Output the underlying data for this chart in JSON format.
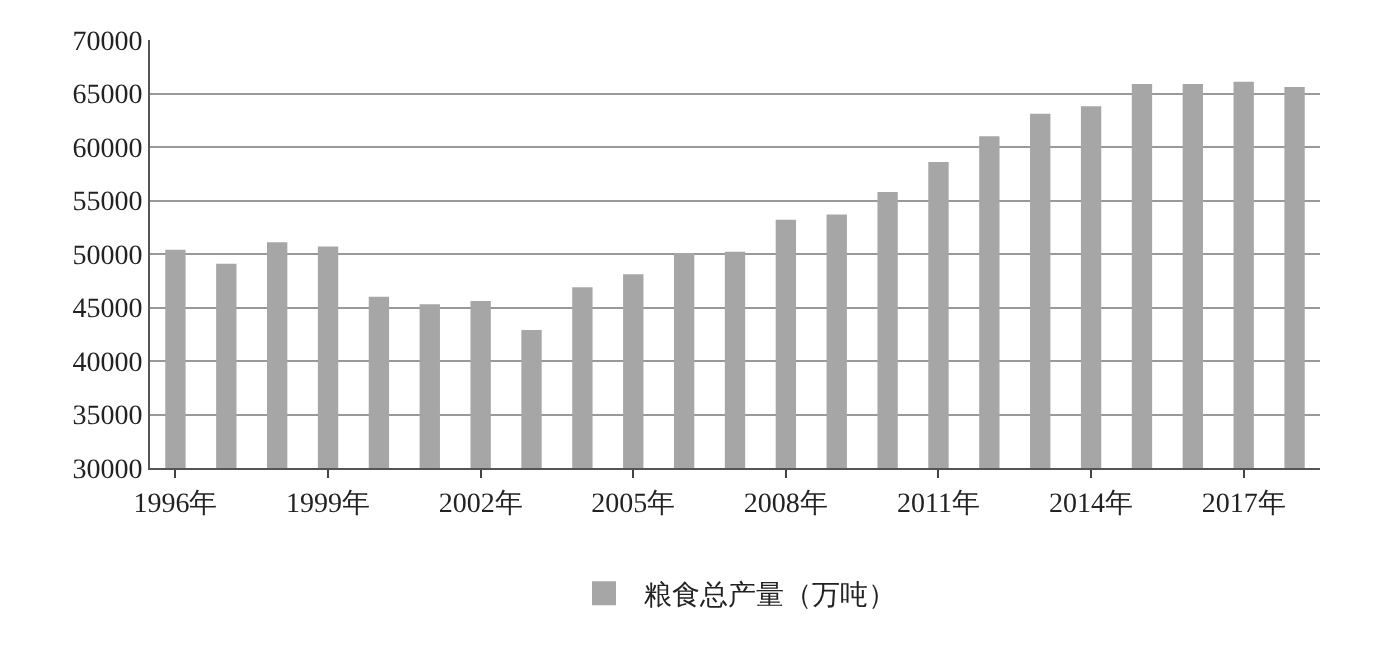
{
  "chart_data": {
    "type": "bar",
    "categories": [
      "1996年",
      null,
      null,
      "1999年",
      null,
      null,
      "2002年",
      null,
      null,
      "2005年",
      null,
      null,
      "2008年",
      null,
      null,
      "2011年",
      null,
      null,
      "2014年",
      null,
      null,
      "2017年",
      null
    ],
    "series": [
      {
        "name": "粮食总产量（万吨）",
        "color": "#a6a6a6",
        "values": [
          50400,
          49100,
          51100,
          50700,
          46000,
          45300,
          45600,
          42900,
          46900,
          48100,
          50100,
          50200,
          53200,
          53700,
          55800,
          58600,
          61000,
          63100,
          63800,
          65900,
          65900,
          66100,
          65600
        ]
      }
    ],
    "ylim": [
      30000,
      70000
    ],
    "yticks": [
      30000,
      35000,
      40000,
      45000,
      50000,
      55000,
      60000,
      65000,
      70000
    ],
    "grid": "y",
    "legend": "bottom"
  }
}
